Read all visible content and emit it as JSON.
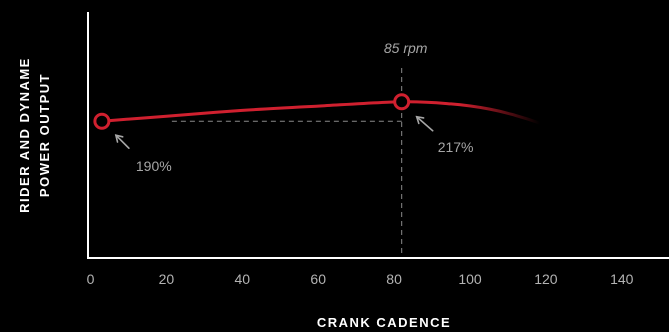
{
  "chart_data": {
    "type": "line",
    "title": "",
    "xlabel": "CRANK CADENCE",
    "ylabel": [
      "RIDER AND DYNAME",
      "POWER OUTPUT"
    ],
    "xlim": [
      0,
      150
    ],
    "ylim": [
      0,
      320
    ],
    "xticks": [
      0,
      20,
      40,
      60,
      80,
      100,
      120,
      140
    ],
    "grid": false,
    "series": [
      {
        "color": "#d0202f",
        "x": [
          3,
          20,
          40,
          60,
          82,
          95,
          105,
          112,
          118,
          120
        ],
        "y": [
          190,
          197,
          205,
          211,
          217,
          214,
          207,
          198,
          188,
          183
        ]
      }
    ],
    "markers": [
      {
        "x": 3,
        "y": 190,
        "label": "190%"
      },
      {
        "x": 82,
        "y": 217,
        "label": "217%"
      }
    ],
    "annotations": {
      "peak_label": "85 rpm"
    },
    "colors": {
      "background": "#000000",
      "line": "#d0202f",
      "axis": "#ffffff",
      "guide": "#8a8a8a",
      "annotation": "#a6a6a6"
    }
  }
}
